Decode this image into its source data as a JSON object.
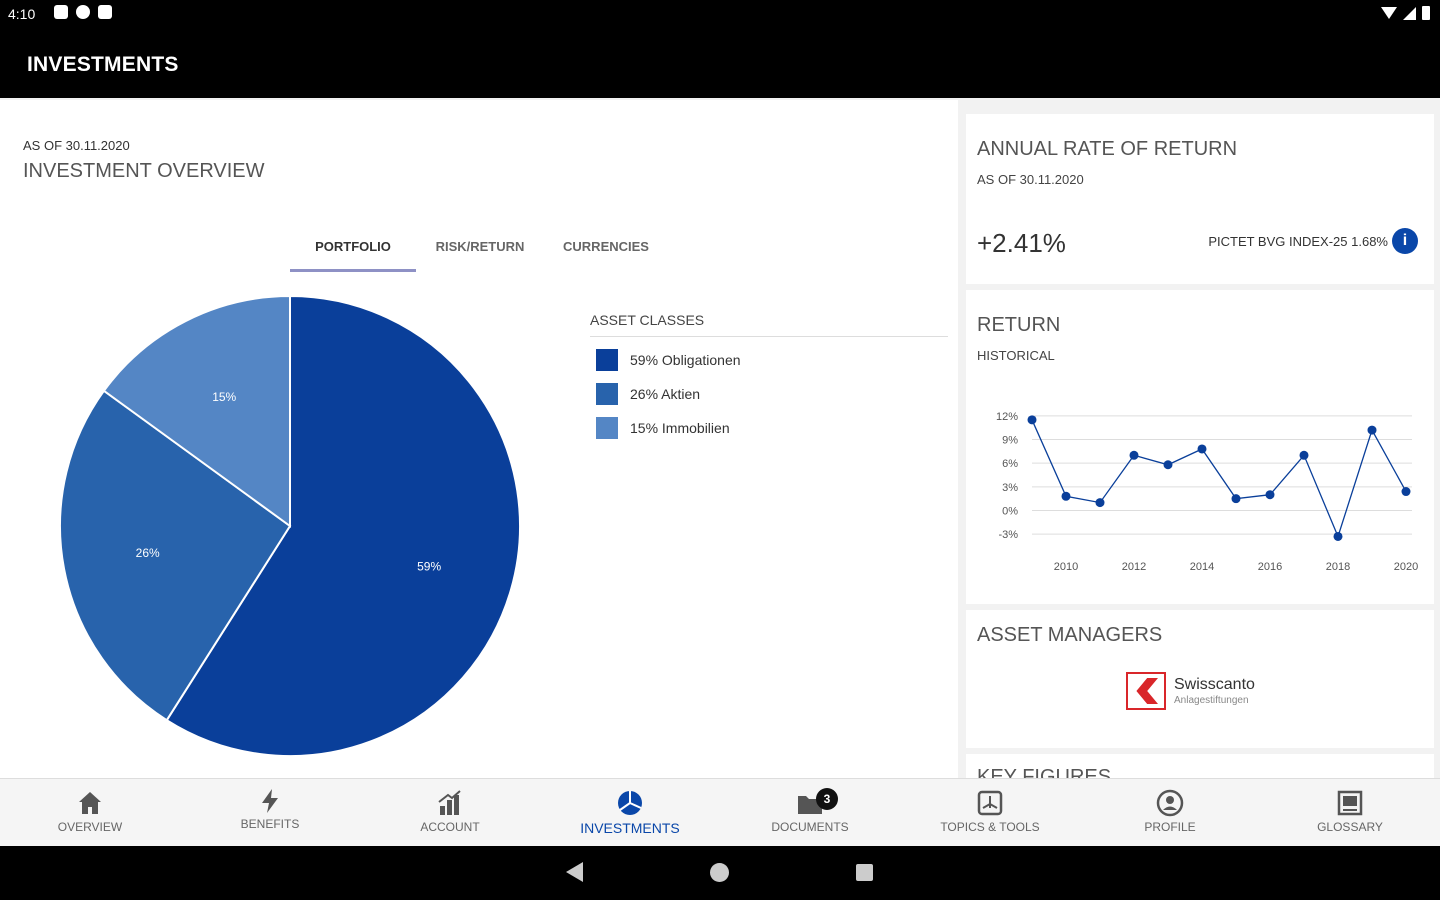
{
  "status_bar": {
    "time": "4:10"
  },
  "app_bar": {
    "title": "INVESTMENTS"
  },
  "overview": {
    "as_of": "AS OF 30.11.2020",
    "title": "INVESTMENT OVERVIEW",
    "tabs": [
      {
        "label": "PORTFOLIO",
        "active": true
      },
      {
        "label": "RISK/RETURN",
        "active": false
      },
      {
        "label": "CURRENCIES",
        "active": false
      }
    ],
    "legend_title": "ASSET CLASSES",
    "legend": [
      {
        "label": "59% Obligationen",
        "color": "#0a3f9a"
      },
      {
        "label": "26% Aktien",
        "color": "#2863ac"
      },
      {
        "label": "15% Immobilien",
        "color": "#5486c5"
      }
    ]
  },
  "chart_data": [
    {
      "type": "pie",
      "slices": [
        {
          "name": "Obligationen",
          "value": 59,
          "label": "59%",
          "color": "#0a3f9a"
        },
        {
          "name": "Aktien",
          "value": 26,
          "label": "26%",
          "color": "#2863ac"
        },
        {
          "name": "Immobilien",
          "value": 15,
          "label": "15%",
          "color": "#5486c5"
        }
      ]
    },
    {
      "type": "line",
      "x": [
        2009,
        2010,
        2011,
        2012,
        2013,
        2014,
        2015,
        2016,
        2017,
        2018,
        2019,
        2020
      ],
      "values": [
        11.5,
        1.8,
        1.0,
        7.0,
        5.8,
        7.8,
        1.5,
        2.0,
        7.0,
        -3.3,
        10.2,
        2.4
      ],
      "xticks": [
        2010,
        2012,
        2014,
        2016,
        2018,
        2020
      ],
      "yticks": [
        12,
        9,
        6,
        3,
        0,
        -3
      ],
      "ytick_labels": [
        "12%",
        "9%",
        "6%",
        "3%",
        "0%",
        "-3%"
      ],
      "ylim": [
        -4,
        13
      ],
      "xlim": [
        2009,
        2020
      ],
      "grid": true,
      "color": "#0a3f9a"
    }
  ],
  "annual_return": {
    "title": "ANNUAL RATE OF RETURN",
    "as_of": "AS OF 30.11.2020",
    "value": "+2.41%",
    "benchmark": "PICTET BVG INDEX-25 1.68%",
    "info_glyph": "i"
  },
  "return_card": {
    "title": "RETURN",
    "subtitle": "HISTORICAL"
  },
  "asset_managers": {
    "title": "ASSET MANAGERS",
    "logo_name": "Swisscanto",
    "logo_sub": "Anlagestiftungen"
  },
  "next_card": {
    "title": "KEY FIGURES"
  },
  "nav": [
    {
      "label": "OVERVIEW",
      "icon": "home-icon",
      "active": false
    },
    {
      "label": "BENEFITS",
      "icon": "lightning-icon",
      "active": false
    },
    {
      "label": "ACCOUNT",
      "icon": "bar-chart-icon",
      "active": false
    },
    {
      "label": "INVESTMENTS",
      "icon": "pie-chart-icon",
      "active": true
    },
    {
      "label": "DOCUMENTS",
      "icon": "folder-icon",
      "active": false,
      "badge": "3"
    },
    {
      "label": "TOPICS & TOOLS",
      "icon": "book-icon",
      "active": false
    },
    {
      "label": "PROFILE",
      "icon": "user-icon",
      "active": false
    },
    {
      "label": "GLOSSARY",
      "icon": "glossary-icon",
      "active": false
    }
  ],
  "colors": {
    "accent": "#0a47a9",
    "tab_indicator": "#8e91c5"
  }
}
